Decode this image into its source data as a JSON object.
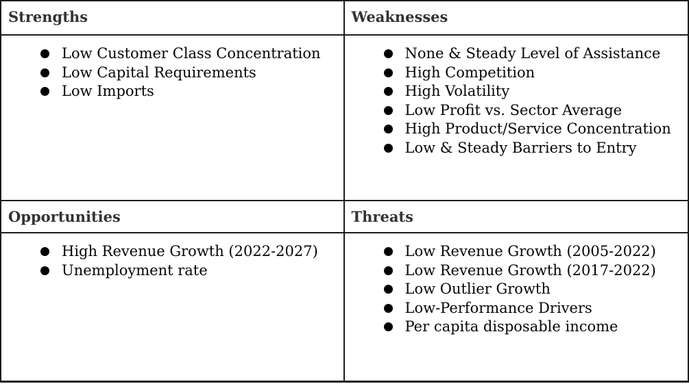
{
  "quadrants": {
    "strengths": {
      "title": "Strengths",
      "items": [
        "Low Customer Class Concentration",
        "Low Capital Requirements",
        "Low Imports"
      ]
    },
    "weaknesses": {
      "title": "Weaknesses",
      "items": [
        "None & Steady Level of Assistance",
        "High Competition",
        "High Volatility",
        "Low Profit vs. Sector Average",
        "High Product/Service Concentration",
        "Low & Steady Barriers to Entry"
      ]
    },
    "opportunities": {
      "title": "Opportunities",
      "items": [
        "High Revenue Growth (2022-2027)",
        "Unemployment rate"
      ]
    },
    "threats": {
      "title": "Threats",
      "items": [
        "Low Revenue Growth (2005-2022)",
        "Low Revenue Growth (2017-2022)",
        "Low Outlier Growth",
        "Low-Performance Drivers",
        "Per capita disposable income"
      ]
    }
  },
  "colors": {
    "border": "#1c1c1c",
    "header": "#333333",
    "body": "#050505",
    "bullet": "#000000",
    "bg": "#ffffff"
  }
}
